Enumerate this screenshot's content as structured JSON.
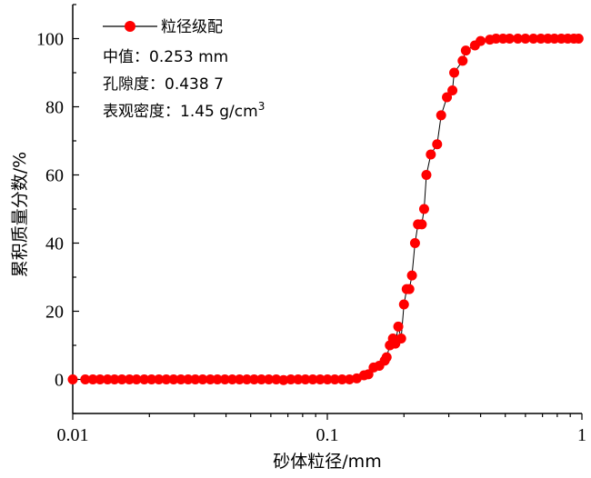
{
  "chart_data": {
    "type": "scatter",
    "xlabel": "砂体粒径/mm",
    "ylabel": "累积质量分数/%",
    "x_scale": "log",
    "xlim": [
      0.01,
      1
    ],
    "ylim": [
      -10,
      110
    ],
    "x_ticks": [
      "0.01",
      "0.1",
      "1"
    ],
    "y_ticks": [
      "0",
      "20",
      "40",
      "60",
      "80",
      "100"
    ],
    "legend": {
      "placement": "top-left",
      "series_label": "粒径级配",
      "annotations": [
        "中值：0.253 mm",
        "孔隙度：0.438 7",
        "表观密度：1.45 g/cm"
      ],
      "density_sup": "3"
    },
    "colors": {
      "marker": "#ff0000",
      "line": "#000000"
    },
    "series": [
      {
        "name": "粒径级配",
        "x": [
          0.01,
          0.0112,
          0.012,
          0.0128,
          0.0137,
          0.0146,
          0.0156,
          0.0167,
          0.0178,
          0.0191,
          0.0204,
          0.0218,
          0.0233,
          0.0249,
          0.0266,
          0.0284,
          0.0303,
          0.0324,
          0.0347,
          0.037,
          0.0396,
          0.0423,
          0.0452,
          0.0483,
          0.0516,
          0.0551,
          0.0589,
          0.063,
          0.0673,
          0.0719,
          0.0768,
          0.082,
          0.0877,
          0.0937,
          0.1001,
          0.107,
          0.1143,
          0.1221,
          0.1305,
          0.1394,
          0.145,
          0.152,
          0.16,
          0.168,
          0.171,
          0.176,
          0.181,
          0.185,
          0.19,
          0.195,
          0.2,
          0.205,
          0.21,
          0.215,
          0.221,
          0.227,
          0.235,
          0.24,
          0.245,
          0.255,
          0.27,
          0.28,
          0.295,
          0.31,
          0.315,
          0.34,
          0.35,
          0.38,
          0.4,
          0.435,
          0.46,
          0.49,
          0.52,
          0.56,
          0.6,
          0.645,
          0.69,
          0.735,
          0.78,
          0.83,
          0.88,
          0.93,
          0.97
        ],
        "y": [
          0,
          0,
          0,
          0,
          0,
          0,
          0,
          0,
          0,
          0,
          0,
          0,
          0,
          0,
          0,
          0,
          0,
          0,
          0,
          0,
          0,
          0,
          0,
          0,
          0,
          0,
          0,
          0,
          -0.2,
          0,
          0,
          0,
          0,
          0,
          0,
          0,
          0,
          0,
          0.3,
          1.2,
          1.5,
          3.5,
          4.0,
          5.5,
          6.5,
          10.0,
          12.0,
          10.5,
          15.5,
          12.0,
          22.0,
          26.5,
          26.5,
          30.5,
          40.0,
          45.5,
          45.5,
          50.0,
          60.0,
          66.0,
          69.0,
          77.5,
          82.8,
          84.8,
          90.0,
          93.5,
          96.5,
          98.0,
          99.3,
          99.7,
          100.0,
          100.0,
          100.0,
          100.0,
          100.0,
          100.0,
          100.0,
          100.0,
          100.0,
          100.0,
          100.0,
          100.0,
          100.0
        ]
      }
    ]
  }
}
